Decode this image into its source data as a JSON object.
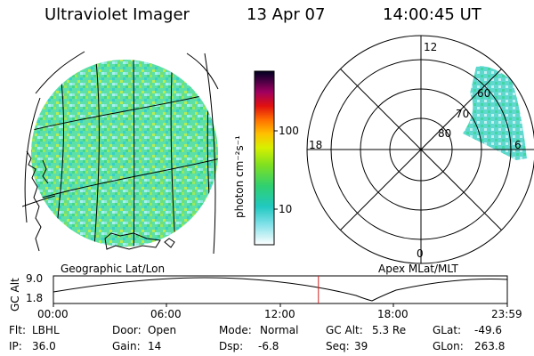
{
  "header": {
    "title": "Ultraviolet Imager",
    "date": "13 Apr 07",
    "time": "14:00:45 UT"
  },
  "colorbar": {
    "label": "photon cm⁻²s⁻¹",
    "ticks": [
      "100",
      "10"
    ]
  },
  "polar": {
    "clock_labels": [
      "12",
      "18",
      "6",
      "0"
    ],
    "lat_labels": [
      "60",
      "70",
      "80"
    ]
  },
  "captions": {
    "left": "Geographic Lat/Lon",
    "right": "Apex MLat/MLT"
  },
  "altitude_plot": {
    "ylabel": "GC Alt",
    "ymax": "9.0",
    "ymin": "1.8",
    "x_ticks": [
      "00:00",
      "06:00",
      "12:00",
      "18:00",
      "23:59"
    ],
    "current_time_hours": 14.0125
  },
  "info_rows": [
    [
      {
        "key": "Flt:",
        "value": "LBHL"
      },
      {
        "key": "Door:",
        "value": "Open"
      },
      {
        "key": "Mode:",
        "value": "Normal"
      },
      {
        "key": "GC Alt:",
        "value": "5.3 Re"
      },
      {
        "key": "GLat:",
        "value": "-49.6"
      }
    ],
    [
      {
        "key": "IP:",
        "value": "36.0"
      },
      {
        "key": "Gain:",
        "value": "14"
      },
      {
        "key": "Dsp:",
        "value": "-6.8"
      },
      {
        "key": "Seq:",
        "value": "39"
      },
      {
        "key": "GLon:",
        "value": "263.8"
      }
    ]
  ],
  "colors": {
    "image_base": "#58e0b0",
    "marker": "#d42020"
  }
}
